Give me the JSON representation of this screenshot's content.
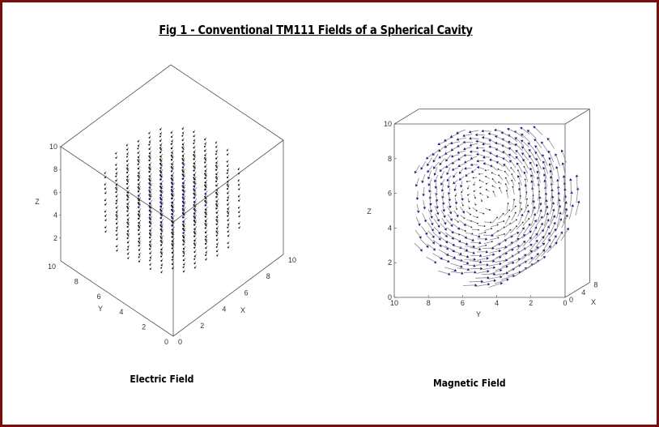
{
  "figure_title": "Fig 1 - Conventional TM111 Fields of a Spherical Cavity",
  "chart_data": [
    {
      "type": "quiver3d",
      "title": "Electric Field",
      "xlabel": "X",
      "ylabel": "Y",
      "zlabel": "Z",
      "xlim": [
        0,
        10
      ],
      "ylim": [
        0,
        10
      ],
      "zlim": [
        0,
        10
      ],
      "x_ticks": [
        "0",
        "2",
        "4",
        "6",
        "8",
        "10"
      ],
      "y_ticks": [
        "0",
        "2",
        "4",
        "6",
        "8",
        "10"
      ],
      "z_ticks": [
        "2",
        "4",
        "6",
        "8",
        "10"
      ],
      "sphere_center": [
        5,
        5,
        5
      ],
      "sphere_radius": 5,
      "grid_step": 1,
      "colors": {
        "arrow": "#1a1a66",
        "box": "#555555"
      }
    },
    {
      "type": "quiver3d",
      "title": "Magnetic Field",
      "xlabel": "X",
      "ylabel": "Y",
      "zlabel": "Z",
      "xlim": [
        0,
        8
      ],
      "ylim": [
        0,
        10
      ],
      "zlim": [
        0,
        10
      ],
      "x_ticks": [
        "0",
        "4",
        "8"
      ],
      "y_ticks": [
        "10",
        "8",
        "6",
        "4",
        "2",
        "0"
      ],
      "z_ticks": [
        "0",
        "2",
        "4",
        "6",
        "8",
        "10"
      ],
      "circulation_center": [
        5,
        5
      ],
      "circulation": "counterclockwise in Y-Z plane",
      "colors": {
        "arrow_shaft": "#8a8a8a",
        "arrow_head": "#1c1c8c",
        "box": "#555555"
      }
    }
  ]
}
